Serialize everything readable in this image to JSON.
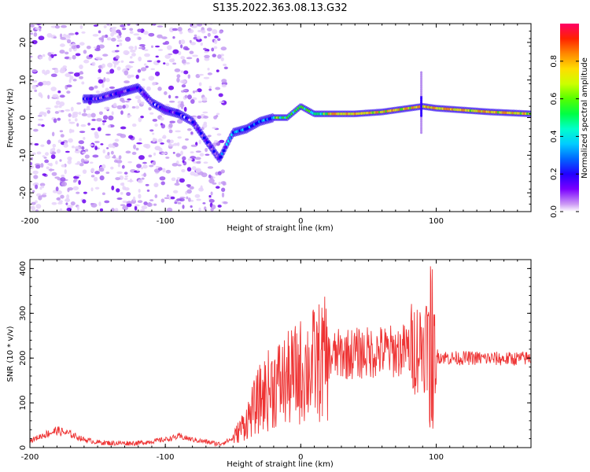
{
  "title": "S135.2022.363.08.13.G32",
  "colors": {
    "snr_line": "#ee3333",
    "frame": "#000000"
  },
  "chart_data": [
    {
      "type": "heatmap",
      "name": "spectrogram",
      "xlabel": "Height of straight line (km)",
      "ylabel": "Frequency (Hz)",
      "xlim": [
        -200,
        170
      ],
      "ylim": [
        -25,
        25
      ],
      "xticks": [
        -200,
        -100,
        0,
        100
      ],
      "yticks": [
        -20,
        -10,
        0,
        10,
        20
      ],
      "colorbar": {
        "label": "Normalized spectral amplitude",
        "range": [
          0.0,
          1.0
        ],
        "ticks": [
          0.0,
          0.2,
          0.4,
          0.6,
          0.8
        ],
        "colormap": [
          "#ffffff",
          "#b878f0",
          "#6600ff",
          "#0000ff",
          "#00aaff",
          "#00ffff",
          "#00ff66",
          "#44ff00",
          "#ccff00",
          "#ffee00",
          "#ff9900",
          "#ff3300",
          "#ff0066"
        ]
      },
      "ridge": {
        "description": "dominant frequency track vs height",
        "x": [
          -150,
          -130,
          -120,
          -110,
          -100,
          -90,
          -80,
          -70,
          -60,
          -50,
          -40,
          -30,
          -20,
          -10,
          0,
          10,
          20,
          40,
          60,
          80,
          90,
          100,
          120,
          140,
          170
        ],
        "y": [
          5,
          7,
          8,
          4,
          2,
          1,
          -1,
          -6,
          -11,
          -4,
          -3,
          -1,
          0,
          0,
          3,
          1,
          1,
          1,
          1.5,
          2.5,
          3,
          2.5,
          2,
          1.5,
          1
        ]
      }
    },
    {
      "type": "line",
      "name": "snr",
      "xlabel": "Height of straight line (km)",
      "ylabel": "SNR (10 * v/v)",
      "xlim": [
        -200,
        170
      ],
      "ylim": [
        0,
        420
      ],
      "xticks": [
        -200,
        -100,
        0,
        100
      ],
      "yticks": [
        0,
        100,
        200,
        300,
        400
      ],
      "series": [
        {
          "name": "SNR",
          "x": [
            -200,
            -190,
            -180,
            -170,
            -160,
            -150,
            -140,
            -120,
            -100,
            -90,
            -80,
            -60,
            -50,
            -40,
            -30,
            -20,
            -10,
            0,
            10,
            20,
            30,
            40,
            50,
            60,
            70,
            80,
            90,
            95,
            97,
            100,
            110,
            130,
            150,
            170
          ],
          "y": [
            15,
            28,
            38,
            30,
            18,
            12,
            10,
            10,
            18,
            25,
            18,
            8,
            20,
            60,
            110,
            140,
            150,
            170,
            185,
            200,
            210,
            210,
            212,
            215,
            215,
            220,
            230,
            250,
            240,
            205,
            200,
            200,
            198,
            200
          ]
        }
      ]
    }
  ]
}
